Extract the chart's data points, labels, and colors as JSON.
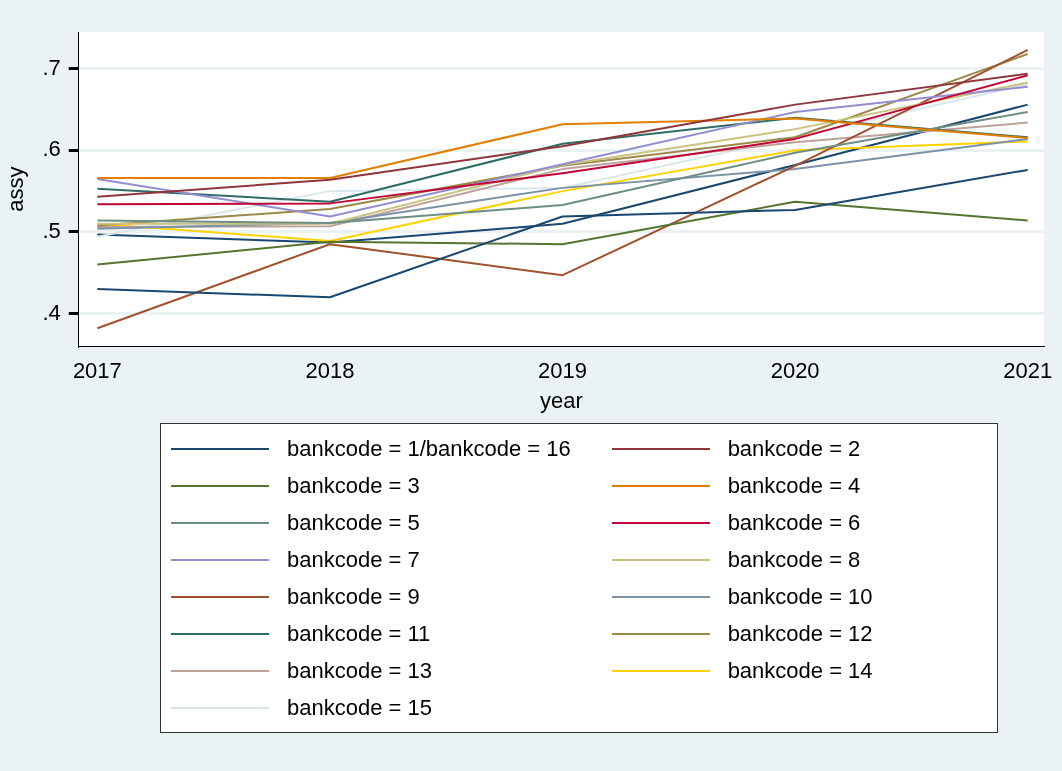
{
  "chart_data": {
    "type": "line",
    "xlabel": "year",
    "ylabel": "assy",
    "x": [
      2017,
      2018,
      2019,
      2020,
      2021
    ],
    "xlim": [
      2016.92,
      2021.07
    ],
    "xticks": [
      2017,
      2018,
      2019,
      2020,
      2021
    ],
    "ylim": [
      0.36,
      0.745
    ],
    "yticks": [
      {
        "value": 0.4,
        "label": ".4"
      },
      {
        "value": 0.5,
        "label": ".5"
      },
      {
        "value": 0.6,
        "label": ".6"
      },
      {
        "value": 0.7,
        "label": ".7"
      }
    ],
    "grid": "y",
    "legend": "bottom",
    "marker": "none",
    "line_style": "solid",
    "series": [
      {
        "name": "bankcode = 1/bankcode = 16",
        "color": "#1a476f",
        "values": [
          0.43,
          0.42,
          0.519,
          0.527,
          0.576
        ]
      },
      {
        "name": "bankcode = 2",
        "color": "#90353b",
        "values": [
          0.543,
          0.564,
          0.605,
          0.656,
          0.694
        ]
      },
      {
        "name": "bankcode = 3",
        "color": "#55752f",
        "values": [
          0.46,
          0.488,
          0.485,
          0.537,
          0.514
        ]
      },
      {
        "name": "bankcode = 4",
        "color": "#e37e00",
        "values": [
          0.566,
          0.566,
          0.632,
          0.639,
          0.615
        ]
      },
      {
        "name": "bankcode = 5",
        "color": "#6e8e84",
        "values": [
          0.514,
          0.511,
          0.533,
          0.597,
          0.647
        ]
      },
      {
        "name": "bankcode = 6",
        "color": "#c10534",
        "values": [
          0.534,
          0.535,
          0.572,
          0.614,
          0.692
        ]
      },
      {
        "name": "bankcode = 7",
        "color": "#938dd2",
        "values": [
          0.565,
          0.519,
          0.583,
          0.647,
          0.678
        ]
      },
      {
        "name": "bankcode = 8",
        "color": "#cac27e",
        "values": [
          0.51,
          0.51,
          0.582,
          0.626,
          0.683
        ]
      },
      {
        "name": "bankcode = 9",
        "color": "#a0522d",
        "values": [
          0.382,
          0.485,
          0.447,
          0.581,
          0.723
        ]
      },
      {
        "name": "bankcode = 10",
        "color": "#7b92a8",
        "values": [
          0.504,
          0.511,
          0.554,
          0.577,
          0.614
        ]
      },
      {
        "name": "bankcode = 11",
        "color": "#2d6d66",
        "values": [
          0.553,
          0.537,
          0.608,
          0.64,
          0.616
        ]
      },
      {
        "name": "bankcode = 12",
        "color": "#9c8847",
        "values": [
          0.508,
          0.528,
          0.581,
          0.616,
          0.718
        ]
      },
      {
        "name": "bankcode = 13",
        "color": "#bfa19c",
        "values": [
          0.506,
          0.507,
          0.577,
          0.61,
          0.634
        ]
      },
      {
        "name": "bankcode = 14",
        "color": "#ffd200",
        "values": [
          0.51,
          0.489,
          0.55,
          0.6,
          0.611
        ]
      },
      {
        "name": "bankcode = 15",
        "color": "#d9e6eb",
        "values": [
          0.494,
          0.55,
          0.554,
          0.616,
          0.681
        ]
      },
      {
        "color": "#1a476f",
        "values": [
          0.497,
          0.487,
          0.51,
          0.582,
          0.656
        ]
      }
    ]
  }
}
